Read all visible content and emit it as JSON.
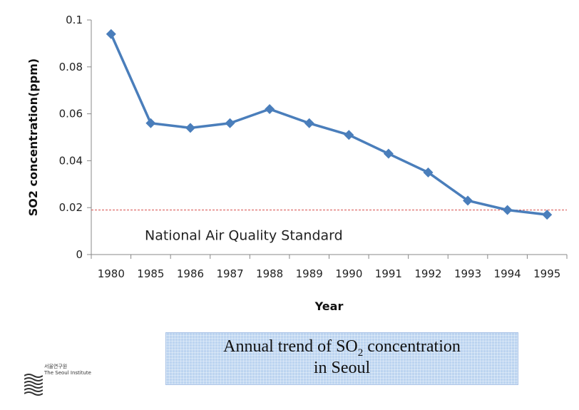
{
  "chart_data": {
    "type": "line",
    "categories": [
      "1980",
      "1985",
      "1986",
      "1987",
      "1988",
      "1989",
      "1990",
      "1991",
      "1992",
      "1993",
      "1994",
      "1995"
    ],
    "series": [
      {
        "name": "SO2 concentration",
        "values": [
          0.094,
          0.056,
          0.054,
          0.056,
          0.062,
          0.056,
          0.051,
          0.043,
          0.035,
          0.023,
          0.019,
          0.017
        ]
      }
    ],
    "reference_line": {
      "value": 0.019,
      "label": "National Air Quality Standard"
    },
    "xlabel": "Year",
    "ylabel": "SO2 concentration(ppm)",
    "ylim": [
      0,
      0.1
    ],
    "yticks": [
      "0",
      "0.02",
      "0.04",
      "0.06",
      "0.08",
      "0.1"
    ],
    "ytick_values": [
      0,
      0.02,
      0.04,
      0.06,
      0.08,
      0.1
    ],
    "grid": false
  },
  "caption": {
    "line1_prefix": "Annual trend of SO",
    "line1_sub": "2",
    "line1_suffix": " concentration",
    "line2": "in Seoul"
  },
  "logo": {
    "korean_name": "서울연구원",
    "english_name": "The Seoul Institute"
  },
  "colors": {
    "series": "#4a7ebb",
    "reference": "#d9534f",
    "caption_bg": "#bcd4f0"
  }
}
